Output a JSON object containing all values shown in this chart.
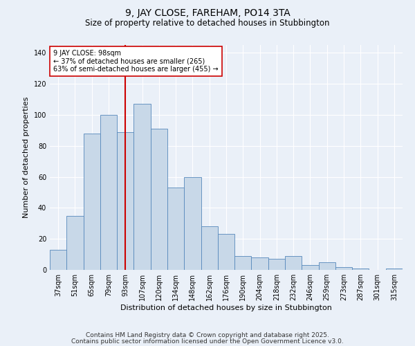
{
  "title": "9, JAY CLOSE, FAREHAM, PO14 3TA",
  "subtitle": "Size of property relative to detached houses in Stubbington",
  "xlabel": "Distribution of detached houses by size in Stubbington",
  "ylabel": "Number of detached properties",
  "bar_labels": [
    "37sqm",
    "51sqm",
    "65sqm",
    "79sqm",
    "93sqm",
    "107sqm",
    "120sqm",
    "134sqm",
    "148sqm",
    "162sqm",
    "176sqm",
    "190sqm",
    "204sqm",
    "218sqm",
    "232sqm",
    "246sqm",
    "259sqm",
    "273sqm",
    "287sqm",
    "301sqm",
    "315sqm"
  ],
  "bar_values": [
    13,
    35,
    88,
    100,
    89,
    107,
    91,
    53,
    60,
    28,
    23,
    9,
    8,
    7,
    9,
    3,
    5,
    2,
    1,
    0,
    1
  ],
  "bar_color": "#c8d8e8",
  "bar_edge_color": "#5588bb",
  "vline_x": 4,
  "vline_color": "#cc0000",
  "annotation_line1": "9 JAY CLOSE: 98sqm",
  "annotation_line2": "← 37% of detached houses are smaller (265)",
  "annotation_line3": "63% of semi-detached houses are larger (455) →",
  "box_color": "#ffffff",
  "box_edge_color": "#cc0000",
  "ylim": [
    0,
    145
  ],
  "yticks": [
    0,
    20,
    40,
    60,
    80,
    100,
    120,
    140
  ],
  "footer1": "Contains HM Land Registry data © Crown copyright and database right 2025.",
  "footer2": "Contains public sector information licensed under the Open Government Licence v3.0.",
  "bg_color": "#eaf0f8",
  "plot_bg_color": "#eaf0f8",
  "title_fontsize": 10,
  "subtitle_fontsize": 8.5,
  "xlabel_fontsize": 8,
  "ylabel_fontsize": 8,
  "tick_fontsize": 7,
  "annotation_fontsize": 7,
  "footer_fontsize": 6.5
}
